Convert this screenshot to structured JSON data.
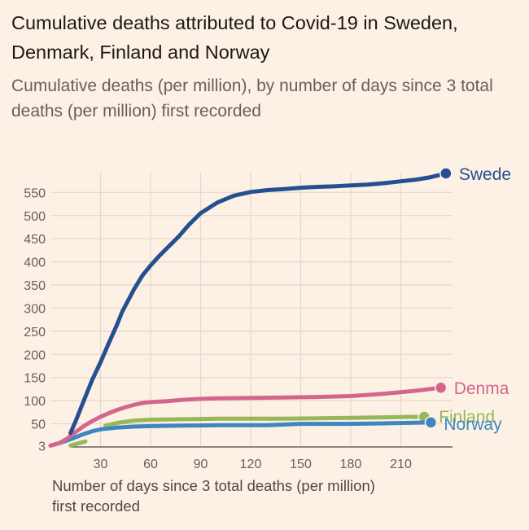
{
  "title": "Cumulative deaths attributed to Covid-19 in Sweden, Denmark, Finland and Norway",
  "subtitle": "Cumulative deaths (per million), by number of days since 3 total deaths (per million) first recorded",
  "colors": {
    "background": "#FDF1E6",
    "grid": "#E3D8CC",
    "axis": "#66605c"
  },
  "chart_data": {
    "type": "line",
    "title": "Cumulative deaths attributed to Covid-19 in Sweden, Denmark, Finland and Norway",
    "subtitle": "Cumulative deaths (per million), by number of days since 3 total deaths (per million) first recorded",
    "xlabel": "Number of days since 3 total deaths (per million) first recorded",
    "ylabel": "",
    "xlim": [
      0,
      245
    ],
    "ylim": [
      0,
      600
    ],
    "xticks": [
      30,
      60,
      90,
      120,
      150,
      180,
      210
    ],
    "yticks": [
      3,
      50,
      100,
      150,
      200,
      250,
      300,
      350,
      400,
      450,
      500,
      550
    ],
    "grid": true,
    "legend": "direct-labels-right",
    "series": [
      {
        "name": "Swede",
        "color": "#254F8E",
        "points": [
          [
            12,
            30
          ],
          [
            15,
            55
          ],
          [
            20,
            100
          ],
          [
            25,
            145
          ],
          [
            30,
            183
          ],
          [
            35,
            225
          ],
          [
            40,
            265
          ],
          [
            43,
            292
          ],
          [
            50,
            340
          ],
          [
            55,
            370
          ],
          [
            60,
            392
          ],
          [
            65,
            412
          ],
          [
            70,
            430
          ],
          [
            77,
            455
          ],
          [
            83,
            480
          ],
          [
            90,
            505
          ],
          [
            100,
            528
          ],
          [
            110,
            543
          ],
          [
            120,
            551
          ],
          [
            130,
            555
          ],
          [
            140,
            557
          ],
          [
            150,
            560
          ],
          [
            160,
            562
          ],
          [
            170,
            563
          ],
          [
            180,
            565
          ],
          [
            190,
            567
          ],
          [
            200,
            570
          ],
          [
            210,
            574
          ],
          [
            220,
            578
          ],
          [
            228,
            583
          ],
          [
            237,
            591
          ]
        ]
      },
      {
        "name": "Denma",
        "color": "#D4668C",
        "points": [
          [
            0,
            3
          ],
          [
            5,
            8
          ],
          [
            10,
            18
          ],
          [
            15,
            32
          ],
          [
            20,
            45
          ],
          [
            25,
            56
          ],
          [
            30,
            65
          ],
          [
            35,
            73
          ],
          [
            40,
            80
          ],
          [
            45,
            86
          ],
          [
            50,
            91
          ],
          [
            55,
            95
          ],
          [
            60,
            97
          ],
          [
            70,
            99
          ],
          [
            80,
            102
          ],
          [
            90,
            104
          ],
          [
            100,
            105
          ],
          [
            120,
            106
          ],
          [
            140,
            107
          ],
          [
            160,
            108
          ],
          [
            180,
            110
          ],
          [
            200,
            115
          ],
          [
            215,
            120
          ],
          [
            225,
            124
          ],
          [
            234,
            128
          ]
        ]
      },
      {
        "name": "Finland",
        "color": "#96B85A",
        "segments": [
          [
            [
              12,
              3
            ],
            [
              16,
              7
            ],
            [
              21,
              12
            ]
          ],
          [
            [
              33,
              46
            ],
            [
              40,
              52
            ],
            [
              50,
              57
            ],
            [
              60,
              59
            ],
            [
              80,
              60
            ],
            [
              100,
              61
            ],
            [
              140,
              61
            ],
            [
              180,
              63
            ],
            [
              200,
              64
            ],
            [
              215,
              65
            ],
            [
              224,
              65
            ]
          ]
        ]
      },
      {
        "name": "Norway",
        "color": "#3D86C2",
        "points": [
          [
            0,
            3
          ],
          [
            5,
            8
          ],
          [
            10,
            14
          ],
          [
            15,
            21
          ],
          [
            20,
            28
          ],
          [
            25,
            34
          ],
          [
            30,
            38
          ],
          [
            35,
            40
          ],
          [
            40,
            42
          ],
          [
            50,
            44
          ],
          [
            60,
            45
          ],
          [
            80,
            46
          ],
          [
            100,
            47
          ],
          [
            130,
            47
          ],
          [
            150,
            50
          ],
          [
            180,
            50
          ],
          [
            200,
            51
          ],
          [
            215,
            52
          ],
          [
            228,
            53
          ]
        ]
      }
    ]
  }
}
